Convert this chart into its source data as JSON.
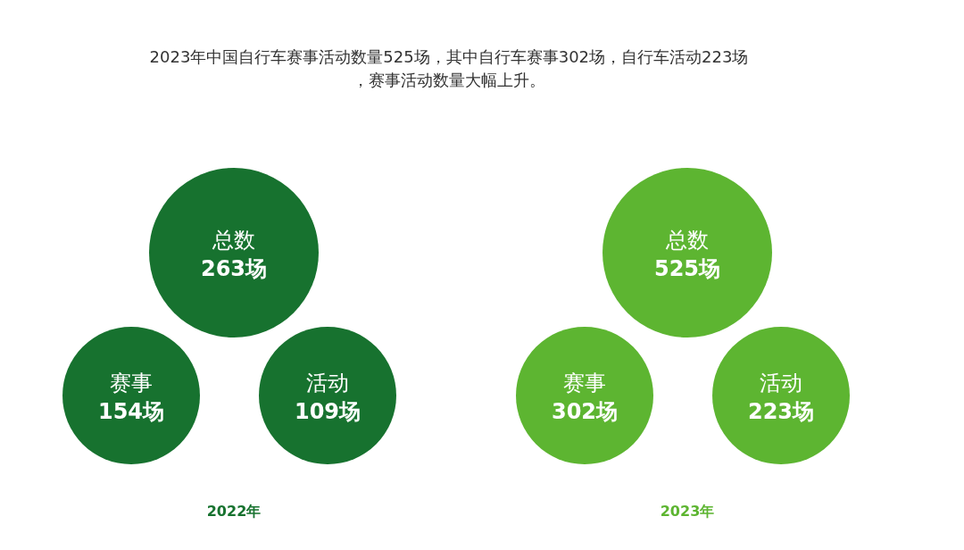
{
  "chart_data": {
    "type": "other",
    "title": "2023年中国自行车赛事活动数量525场，其中自行车赛事302场，自行车活动223场，赛事活动数量大幅上升。",
    "categories": [
      "总数",
      "赛事",
      "活动"
    ],
    "series": [
      {
        "name": "2022年",
        "color": "#17722f",
        "values": [
          263,
          154,
          109
        ],
        "value_labels": [
          "263场",
          "154场",
          "109场"
        ]
      },
      {
        "name": "2023年",
        "color": "#5db531",
        "values": [
          525,
          302,
          223
        ],
        "value_labels": [
          "525场",
          "302场",
          "223场"
        ]
      }
    ]
  }
}
